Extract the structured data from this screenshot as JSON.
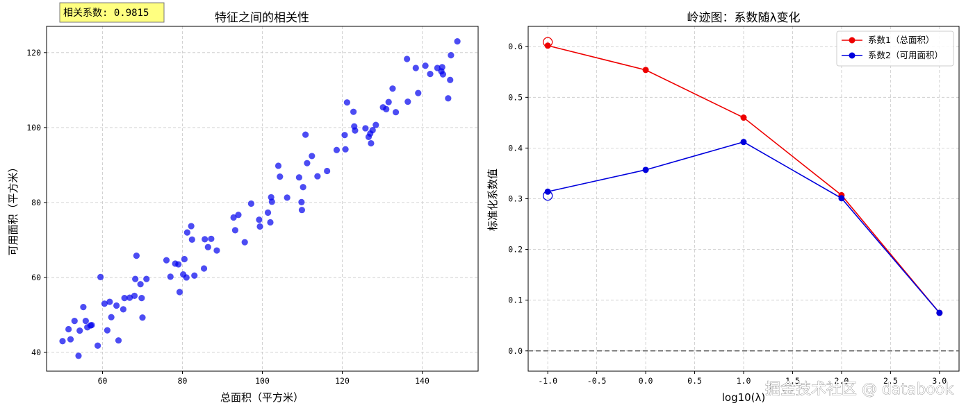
{
  "watermark": "掘金技术社区 @ databook",
  "chart_data": [
    {
      "type": "scatter",
      "title": "特征之间的相关性",
      "xlabel": "总面积（平方米）",
      "ylabel": "可用面积（平方米）",
      "xlim": [
        46,
        154
      ],
      "ylim": [
        35,
        127
      ],
      "xticks": [
        60,
        80,
        100,
        120,
        140
      ],
      "yticks": [
        40,
        60,
        80,
        100,
        120
      ],
      "grid": true,
      "color": "#0000ee",
      "annotation": "相关系数: 0.9815",
      "points": [
        [
          50,
          43
        ],
        [
          51.5,
          46.2
        ],
        [
          52,
          43.5
        ],
        [
          53,
          48.4
        ],
        [
          54,
          39.1
        ],
        [
          54.3,
          45.8
        ],
        [
          55.2,
          52.1
        ],
        [
          55.8,
          48.4
        ],
        [
          56.2,
          46.7
        ],
        [
          57,
          47.2
        ],
        [
          57.3,
          47.3
        ],
        [
          58.8,
          41.8
        ],
        [
          59.5,
          60.1
        ],
        [
          60.5,
          53
        ],
        [
          61.2,
          45.9
        ],
        [
          61.8,
          53.5
        ],
        [
          62.2,
          49.4
        ],
        [
          63.5,
          52.5
        ],
        [
          64,
          43.2
        ],
        [
          65.2,
          51.5
        ],
        [
          65.5,
          54.5
        ],
        [
          66.8,
          54.6
        ],
        [
          68,
          55.1
        ],
        [
          68.2,
          59.6
        ],
        [
          68.5,
          65.8
        ],
        [
          69.5,
          58.2
        ],
        [
          69.8,
          54.5
        ],
        [
          70,
          49.3
        ],
        [
          71,
          59.6
        ],
        [
          76,
          64.6
        ],
        [
          77,
          60.2
        ],
        [
          78.2,
          63.7
        ],
        [
          79,
          63.5
        ],
        [
          79.3,
          56.1
        ],
        [
          80.2,
          60.8
        ],
        [
          80.5,
          64.9
        ],
        [
          81,
          60
        ],
        [
          81.2,
          72
        ],
        [
          82.2,
          73.7
        ],
        [
          82.4,
          70.1
        ],
        [
          83,
          60.5
        ],
        [
          85.4,
          62.4
        ],
        [
          85.6,
          70.2
        ],
        [
          86.4,
          68.1
        ],
        [
          87.2,
          70.3
        ],
        [
          88.6,
          67.2
        ],
        [
          92.8,
          76
        ],
        [
          93.2,
          72.6
        ],
        [
          94,
          76.7
        ],
        [
          95.6,
          69.4
        ],
        [
          97.2,
          79.7
        ],
        [
          99.2,
          75.4
        ],
        [
          99.4,
          73.6
        ],
        [
          101.4,
          77.3
        ],
        [
          102,
          74.7
        ],
        [
          102.2,
          81.4
        ],
        [
          102.4,
          80.2
        ],
        [
          104,
          89.8
        ],
        [
          104.4,
          86.9
        ],
        [
          106.2,
          81.3
        ],
        [
          109.2,
          86.7
        ],
        [
          109.8,
          80.1
        ],
        [
          109.9,
          78
        ],
        [
          110.2,
          84.1
        ],
        [
          110.8,
          98.1
        ],
        [
          111.2,
          90.5
        ],
        [
          112.4,
          92.4
        ],
        [
          113.8,
          87
        ],
        [
          116.2,
          88.4
        ],
        [
          118.6,
          94
        ],
        [
          120.6,
          98
        ],
        [
          120.8,
          94.2
        ],
        [
          121.2,
          106.7
        ],
        [
          122.8,
          104.2
        ],
        [
          123,
          100.3
        ],
        [
          123.2,
          99.2
        ],
        [
          125.8,
          99.8
        ],
        [
          126.6,
          97.5
        ],
        [
          127,
          98.4
        ],
        [
          127.2,
          95.8
        ],
        [
          127.6,
          99.3
        ],
        [
          128.4,
          100.7
        ],
        [
          130.2,
          105.4
        ],
        [
          131,
          104.9
        ],
        [
          131.6,
          106.8
        ],
        [
          132.6,
          110.4
        ],
        [
          133.4,
          104.1
        ],
        [
          136.2,
          118.3
        ],
        [
          136.4,
          106.9
        ],
        [
          138.4,
          115.9
        ],
        [
          139,
          109.2
        ],
        [
          140.8,
          116.5
        ],
        [
          142,
          114.3
        ],
        [
          143.8,
          115.9
        ],
        [
          144.8,
          115
        ],
        [
          145,
          116.1
        ],
        [
          145.2,
          114.2
        ],
        [
          146.5,
          107.8
        ],
        [
          147,
          112.7
        ],
        [
          147.2,
          119.3
        ],
        [
          148.8,
          123
        ]
      ]
    },
    {
      "type": "line",
      "title": "岭迹图：系数随λ变化",
      "xlabel": "log10(λ)",
      "ylabel": "标准化系数值",
      "xlim": [
        -1.2,
        3.2
      ],
      "ylim": [
        -0.04,
        0.64
      ],
      "xticks": [
        -1.0,
        -0.5,
        0.0,
        0.5,
        1.0,
        1.5,
        2.0,
        2.5,
        3.0
      ],
      "xtick_labels": [
        "-1.0",
        "-0.5",
        "0.0",
        "0.5",
        "1.0",
        "1.5",
        "2.0",
        "2.5",
        "3.0"
      ],
      "yticks": [
        0.0,
        0.1,
        0.2,
        0.3,
        0.4,
        0.5,
        0.6
      ],
      "ytick_labels": [
        "0.0",
        "0.1",
        "0.2",
        "0.3",
        "0.4",
        "0.5",
        "0.6"
      ],
      "grid": true,
      "legend_position": "top-right",
      "x": [
        -1,
        0,
        1,
        2,
        3
      ],
      "series": [
        {
          "name": "系数1（总面积）",
          "color": "#ee0000",
          "values": [
            0.602,
            0.554,
            0.46,
            0.307,
            0.075
          ],
          "marker_open": [
            -1,
            0.609
          ]
        },
        {
          "name": "系数2（可用面积）",
          "color": "#0000dd",
          "values": [
            0.314,
            0.357,
            0.412,
            0.301,
            0.075
          ],
          "marker_open": [
            -1,
            0.306
          ]
        }
      ],
      "reference_line": {
        "y": 0.0,
        "color": "#666666",
        "style": "dashed"
      }
    }
  ]
}
